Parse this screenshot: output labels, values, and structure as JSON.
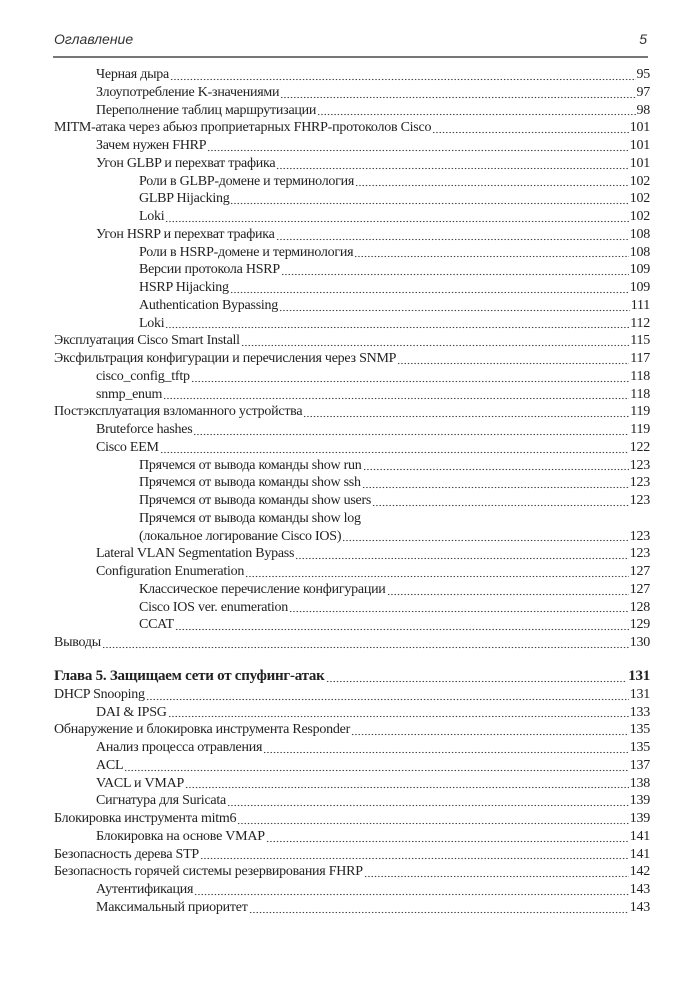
{
  "header": {
    "title": "Оглавление",
    "page_number": "5"
  },
  "entries": [
    {
      "level": 1,
      "title": "Черная дыра",
      "page": "95"
    },
    {
      "level": 1,
      "title": "Злоупотребление K-значениями",
      "page": "97"
    },
    {
      "level": 1,
      "title": "Переполнение таблиц маршрутизации",
      "page": "98"
    },
    {
      "level": 0,
      "title": "MITM-атака через абьюз проприетарных FHRP-протоколов Cisco",
      "page": "101"
    },
    {
      "level": 1,
      "title": "Зачем нужен FHRP",
      "page": "101"
    },
    {
      "level": 1,
      "title": "Угон GLBP и перехват трафика",
      "page": "101"
    },
    {
      "level": 2,
      "title": "Роли в GLBP-домене и терминология",
      "page": "102"
    },
    {
      "level": 2,
      "title": "GLBP Hijacking",
      "page": "102"
    },
    {
      "level": 2,
      "title": "Loki",
      "page": "102"
    },
    {
      "level": 1,
      "title": "Угон HSRP и перехват трафика",
      "page": "108"
    },
    {
      "level": 2,
      "title": "Роли в HSRP-домене и терминология",
      "page": "108"
    },
    {
      "level": 2,
      "title": "Версии протокола HSRP",
      "page": "109"
    },
    {
      "level": 2,
      "title": "HSRP Hijacking",
      "page": "109"
    },
    {
      "level": 2,
      "title": "Authentication Bypassing",
      "page": "111"
    },
    {
      "level": 2,
      "title": "Loki",
      "page": "112"
    },
    {
      "level": 0,
      "title": "Эксплуатация Cisco Smart Install",
      "page": "115"
    },
    {
      "level": 0,
      "title": "Эксфильтрация конфигурации и перечисления через SNMP",
      "page": "117"
    },
    {
      "level": 1,
      "title": "cisco_config_tftp",
      "page": "118"
    },
    {
      "level": 1,
      "title": "snmp_enum",
      "page": "118"
    },
    {
      "level": 0,
      "title": "Постэксплуатация взломанного устройства",
      "page": "119"
    },
    {
      "level": 1,
      "title": "Bruteforce hashes",
      "page": "119"
    },
    {
      "level": 1,
      "title": "Cisco EEM",
      "page": "122"
    },
    {
      "level": 2,
      "title": "Прячемся от вывода команды show run",
      "page": "123"
    },
    {
      "level": 2,
      "title": "Прячемся от вывода команды show ssh",
      "page": "123"
    },
    {
      "level": 2,
      "title": "Прячемся от вывода команды show users",
      "page": "123"
    },
    {
      "level": 2,
      "title": "Прячемся от вывода команды show log",
      "title_cont": "(локальное логирование Cisco IOS)",
      "page": "123"
    },
    {
      "level": 1,
      "title": "Lateral VLAN Segmentation Bypass",
      "page": "123"
    },
    {
      "level": 1,
      "title": "Configuration Enumeration",
      "page": "127"
    },
    {
      "level": 2,
      "title": "Классическое перечисление конфигурации",
      "page": "127"
    },
    {
      "level": 2,
      "title": "Cisco IOS ver. enumeration",
      "page": "128"
    },
    {
      "level": 2,
      "title": "CCAT",
      "page": "129"
    },
    {
      "level": 0,
      "title": "Выводы",
      "page": "130"
    },
    {
      "level": "chapter",
      "title": "Глава 5. Защищаем сети от спуфинг-атак",
      "page": "131"
    },
    {
      "level": 0,
      "title": "DHCP Snooping",
      "page": "131"
    },
    {
      "level": 1,
      "title": "DAI & IPSG",
      "page": "133"
    },
    {
      "level": 0,
      "title": "Обнаружение и блокировка инструмента Responder",
      "page": "135"
    },
    {
      "level": 1,
      "title": "Анализ процесса отравления",
      "page": "135"
    },
    {
      "level": 1,
      "title": "ACL",
      "page": "137"
    },
    {
      "level": 1,
      "title": "VACL и VMAP",
      "page": "138"
    },
    {
      "level": 1,
      "title": "Сигнатура для Suricata",
      "page": "139"
    },
    {
      "level": 0,
      "title": "Блокировка инструмента mitm6",
      "page": "139"
    },
    {
      "level": 1,
      "title": "Блокировка на основе VMAP",
      "page": "141"
    },
    {
      "level": 0,
      "title": "Безопасность дерева STP",
      "page": "141"
    },
    {
      "level": 0,
      "title": "Безопасность горячей системы резервирования FHRP",
      "page": "142"
    },
    {
      "level": 1,
      "title": "Аутентификация",
      "page": "143"
    },
    {
      "level": 1,
      "title": "Максимальный приоритет",
      "page": "143"
    }
  ]
}
